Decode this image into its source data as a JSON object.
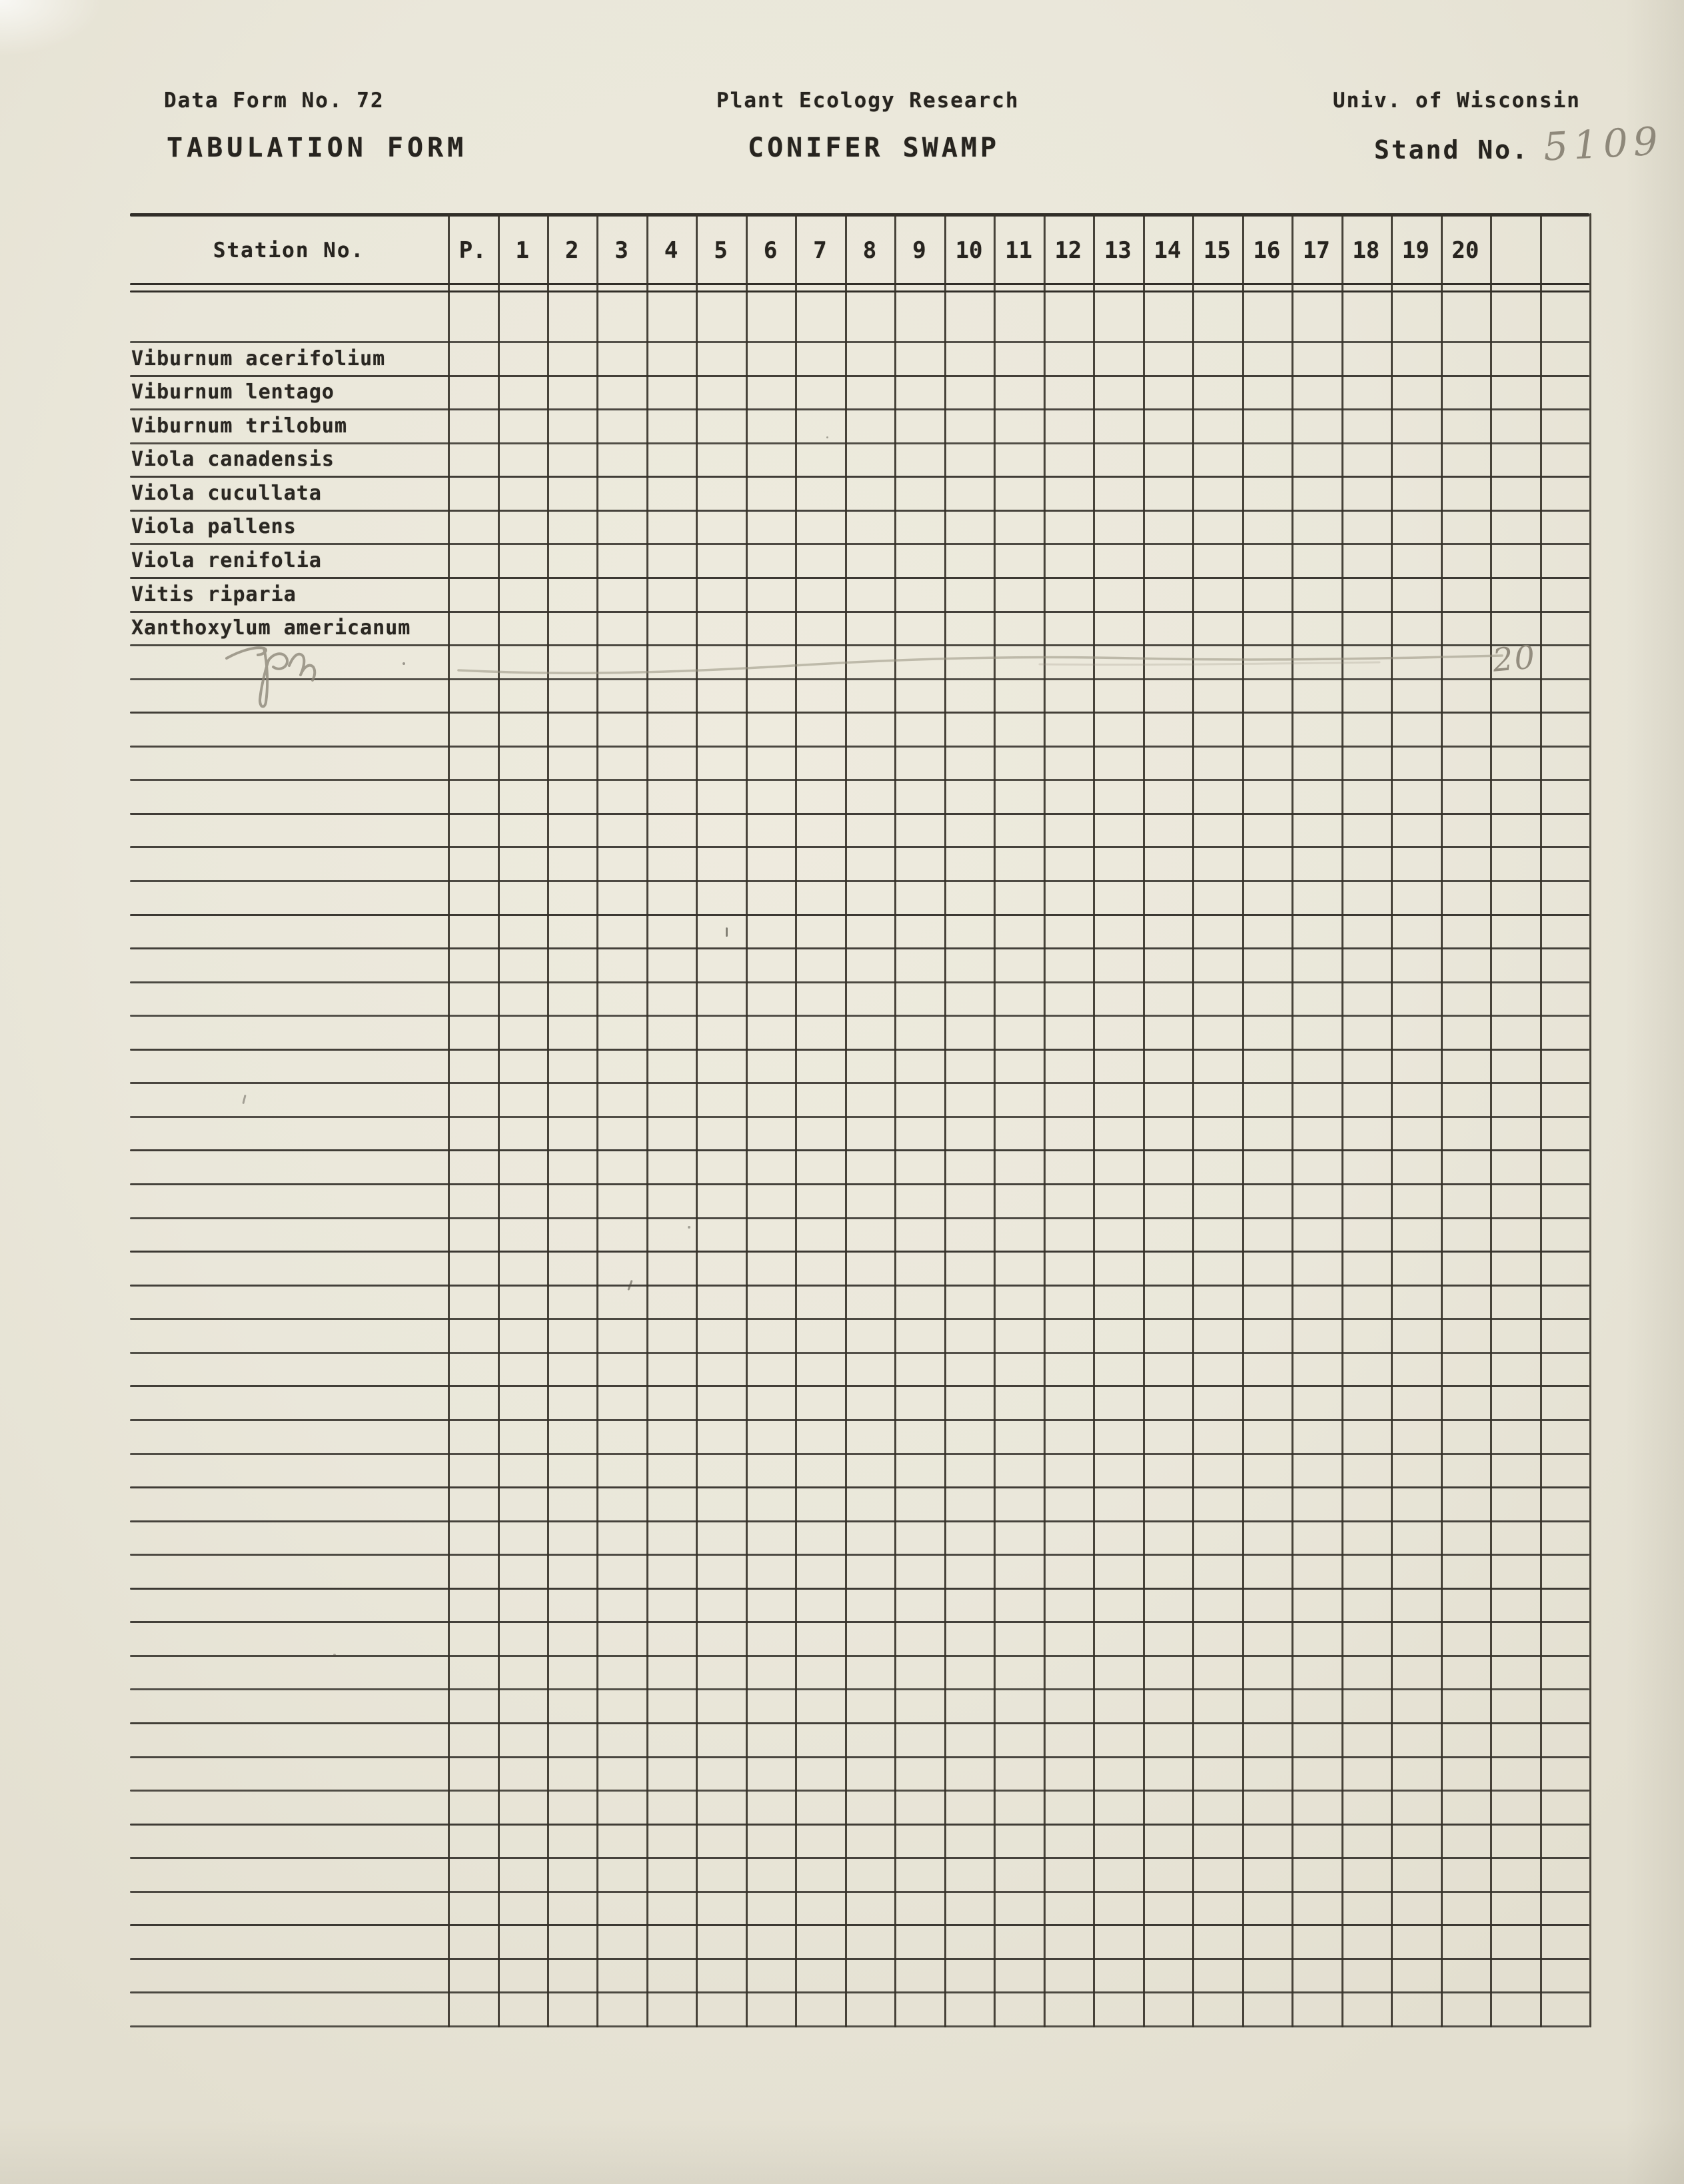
{
  "header": {
    "left_line1": "Data Form No. 72",
    "left_line2": "TABULATION FORM",
    "center_line1": "Plant Ecology Research",
    "center_line2": "CONIFER SWAMP",
    "right_line1": "Univ. of Wisconsin",
    "stand_label": "Stand No.",
    "stand_value": "5109"
  },
  "table": {
    "station_header": "Station No.",
    "columns": [
      "P.",
      "1",
      "2",
      "3",
      "4",
      "5",
      "6",
      "7",
      "8",
      "9",
      "10",
      "11",
      "12",
      "13",
      "14",
      "15",
      "16",
      "17",
      "18",
      "19",
      "20",
      "",
      ""
    ],
    "species": [
      "Viburnum acerifolium",
      "Viburnum lentago",
      "Viburnum trilobum",
      "Viola canadensis",
      "Viola cucullata",
      "Viola pallens",
      "Viola renifolia",
      "Vitis riparia",
      "Xanthoxylum americanum"
    ],
    "pencil": {
      "initials": "rph",
      "count_label": "20"
    }
  },
  "colors": {
    "paper": "#eae7da",
    "ink": "#27241f",
    "grid_line": "#312e28",
    "pencil": "#8a8476"
  }
}
